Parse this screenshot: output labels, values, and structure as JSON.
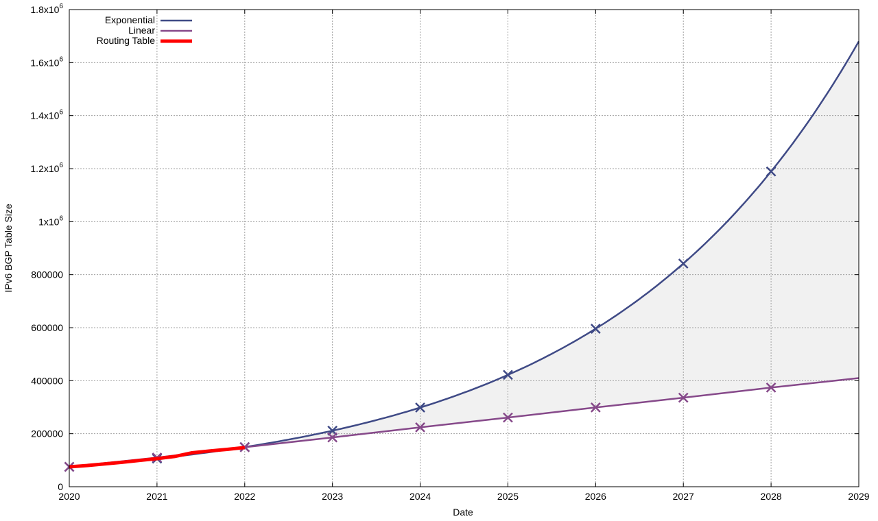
{
  "chart_data": {
    "type": "line",
    "xlabel": "Date",
    "ylabel": "IPv6 BGP Table Size",
    "xlim": [
      2020,
      2029
    ],
    "ylim": [
      0,
      1800000
    ],
    "x_ticks": [
      2020,
      2021,
      2022,
      2023,
      2024,
      2025,
      2026,
      2027,
      2028,
      2029
    ],
    "y_ticks": [
      {
        "value": 0,
        "label": "0"
      },
      {
        "value": 200000,
        "label": "200000"
      },
      {
        "value": 400000,
        "label": "400000"
      },
      {
        "value": 600000,
        "label": "600000"
      },
      {
        "value": 800000,
        "label": "800000"
      },
      {
        "value": 1000000,
        "label": "1x10",
        "exp": "6"
      },
      {
        "value": 1200000,
        "label": "1.2x10",
        "exp": "6"
      },
      {
        "value": 1400000,
        "label": "1.4x10",
        "exp": "6"
      },
      {
        "value": 1600000,
        "label": "1.6x10",
        "exp": "6"
      },
      {
        "value": 1800000,
        "label": "1.8x10",
        "exp": "6"
      }
    ],
    "grid": true,
    "legend_position": "top-left",
    "series": [
      {
        "name": "Exponential",
        "color": "#3f4a86",
        "x": [
          2020,
          2021,
          2022,
          2023,
          2024,
          2025,
          2026,
          2027,
          2028,
          2029
        ],
        "y": [
          75000,
          107000,
          151000,
          213000,
          301000,
          425000,
          600000,
          847000,
          1195000,
          1680000
        ],
        "markers_at": [
          2020,
          2021,
          2022,
          2023,
          2024,
          2025,
          2026,
          2027,
          2028
        ]
      },
      {
        "name": "Linear",
        "color": "#86498a",
        "x": [
          2020,
          2021,
          2022,
          2023,
          2024,
          2025,
          2026,
          2027,
          2028,
          2029
        ],
        "y": [
          75000,
          110000,
          149000,
          186000,
          224000,
          261000,
          299000,
          336000,
          374000,
          410000
        ],
        "markers_at": [
          2020,
          2021,
          2022,
          2023,
          2024,
          2025,
          2026,
          2027,
          2028
        ]
      },
      {
        "name": "Routing Table",
        "color": "#ff0000",
        "x": [
          2020,
          2020.2,
          2020.4,
          2020.6,
          2020.8,
          2021.0,
          2021.2,
          2021.4,
          2021.6,
          2021.8,
          2022.0
        ],
        "y": [
          75000,
          80000,
          86000,
          92000,
          99000,
          106000,
          114000,
          128000,
          135000,
          141000,
          148000
        ]
      }
    ]
  }
}
